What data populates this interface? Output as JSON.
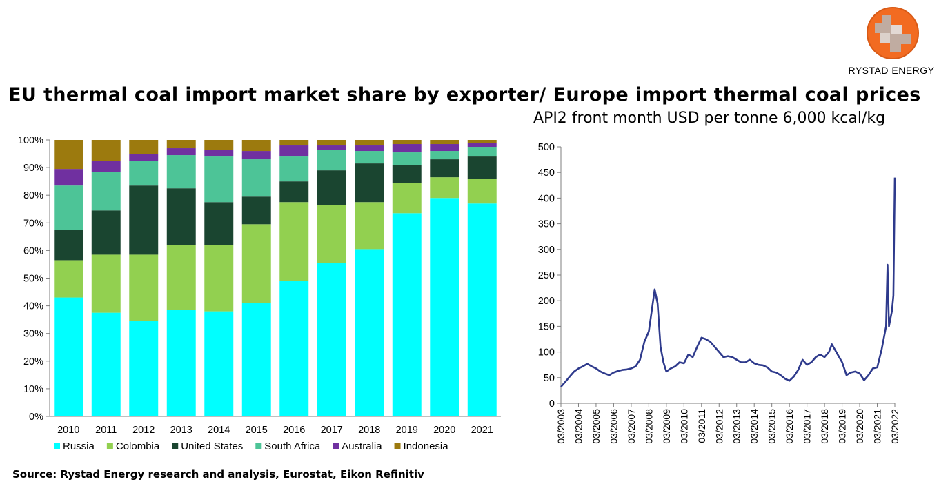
{
  "header": {
    "title": "EU thermal coal import market share by exporter/ Europe import thermal coal prices",
    "subtitle": "API2 front month USD per tonne 6,000 kcal/kg",
    "source": "Source: Rystad Energy research and analysis,  Eurostat, Eikon Refinitiv",
    "logo_text": "RYSTAD ENERGY"
  },
  "colors": {
    "russia": "#00FFFF",
    "colombia": "#92D050",
    "united_states": "#1A4530",
    "south_africa": "#4DC497",
    "australia": "#7030A0",
    "indonesia": "#9C7A0E",
    "price_line": "#2E3A8C",
    "logo_orange": "#F26B21"
  },
  "chart_data": [
    {
      "type": "bar",
      "stacked": true,
      "categories": [
        "2010",
        "2011",
        "2012",
        "2013",
        "2014",
        "2015",
        "2016",
        "2017",
        "2018",
        "2019",
        "2020",
        "2021"
      ],
      "series": [
        {
          "name": "Russia",
          "values": [
            43,
            37.5,
            34.5,
            38.5,
            38,
            41,
            49,
            55.5,
            60.5,
            73.5,
            79,
            77
          ]
        },
        {
          "name": "Colombia",
          "values": [
            13.5,
            21,
            24,
            23.5,
            24,
            28.5,
            28.5,
            21,
            17,
            11,
            7.5,
            9
          ]
        },
        {
          "name": "United States",
          "values": [
            11,
            16,
            25,
            20.5,
            15.5,
            10,
            7.5,
            12.5,
            14,
            6.5,
            6.5,
            8
          ]
        },
        {
          "name": "South Africa",
          "values": [
            16,
            14,
            9,
            12,
            16.5,
            13.5,
            9,
            7.5,
            4.5,
            4.5,
            3,
            3.5
          ]
        },
        {
          "name": "Australia",
          "values": [
            6,
            4,
            2.5,
            2.5,
            2.5,
            3,
            4,
            1.5,
            2,
            3,
            2.5,
            1.5
          ]
        },
        {
          "name": "Indonesia",
          "values": [
            10.5,
            7.5,
            5,
            3,
            3.5,
            4,
            2,
            2,
            2,
            1.5,
            1.5,
            1
          ]
        }
      ],
      "y_ticks": [
        "0%",
        "10%",
        "20%",
        "30%",
        "40%",
        "50%",
        "60%",
        "70%",
        "80%",
        "90%",
        "100%"
      ],
      "ylim": [
        0,
        100
      ],
      "legend": "bottom"
    },
    {
      "type": "line",
      "x_ticks": [
        "03/2003",
        "03/2004",
        "03/2005",
        "03/2006",
        "03/2007",
        "03/2008",
        "03/2009",
        "03/2010",
        "03/2011",
        "03/2012",
        "03/2013",
        "03/2014",
        "03/2015",
        "03/2016",
        "03/2017",
        "03/2018",
        "03/2019",
        "03/2020",
        "03/2021",
        "03/2022"
      ],
      "y_ticks": [
        "0",
        "50",
        "100",
        "150",
        "200",
        "250",
        "300",
        "350",
        "400",
        "450",
        "500"
      ],
      "ylim": [
        0,
        500
      ],
      "xlim": [
        "2003-03",
        "2022-03"
      ],
      "series": [
        {
          "values": [
            [
              "2003-03",
              32
            ],
            [
              "2003-06",
              42
            ],
            [
              "2003-09",
              52
            ],
            [
              "2003-12",
              62
            ],
            [
              "2004-03",
              68
            ],
            [
              "2004-06",
              72
            ],
            [
              "2004-09",
              77
            ],
            [
              "2004-12",
              72
            ],
            [
              "2005-03",
              68
            ],
            [
              "2005-06",
              62
            ],
            [
              "2005-09",
              58
            ],
            [
              "2005-12",
              55
            ],
            [
              "2006-03",
              60
            ],
            [
              "2006-06",
              63
            ],
            [
              "2006-09",
              65
            ],
            [
              "2006-12",
              66
            ],
            [
              "2007-03",
              68
            ],
            [
              "2007-06",
              72
            ],
            [
              "2007-09",
              85
            ],
            [
              "2007-12",
              120
            ],
            [
              "2008-03",
              140
            ],
            [
              "2008-05",
              180
            ],
            [
              "2008-07",
              222
            ],
            [
              "2008-09",
              195
            ],
            [
              "2008-11",
              110
            ],
            [
              "2009-01",
              80
            ],
            [
              "2009-03",
              62
            ],
            [
              "2009-06",
              68
            ],
            [
              "2009-09",
              72
            ],
            [
              "2009-12",
              80
            ],
            [
              "2010-03",
              78
            ],
            [
              "2010-06",
              95
            ],
            [
              "2010-09",
              90
            ],
            [
              "2010-12",
              110
            ],
            [
              "2011-03",
              128
            ],
            [
              "2011-06",
              125
            ],
            [
              "2011-09",
              120
            ],
            [
              "2011-12",
              110
            ],
            [
              "2012-03",
              100
            ],
            [
              "2012-06",
              90
            ],
            [
              "2012-09",
              92
            ],
            [
              "2012-12",
              90
            ],
            [
              "2013-03",
              85
            ],
            [
              "2013-06",
              80
            ],
            [
              "2013-09",
              80
            ],
            [
              "2013-12",
              85
            ],
            [
              "2014-03",
              78
            ],
            [
              "2014-06",
              75
            ],
            [
              "2014-09",
              74
            ],
            [
              "2014-12",
              70
            ],
            [
              "2015-03",
              62
            ],
            [
              "2015-06",
              60
            ],
            [
              "2015-09",
              55
            ],
            [
              "2015-12",
              48
            ],
            [
              "2016-03",
              44
            ],
            [
              "2016-06",
              52
            ],
            [
              "2016-09",
              65
            ],
            [
              "2016-12",
              85
            ],
            [
              "2017-03",
              75
            ],
            [
              "2017-06",
              80
            ],
            [
              "2017-09",
              90
            ],
            [
              "2017-12",
              95
            ],
            [
              "2018-03",
              90
            ],
            [
              "2018-06",
              100
            ],
            [
              "2018-08",
              115
            ],
            [
              "2018-10",
              105
            ],
            [
              "2018-12",
              95
            ],
            [
              "2019-03",
              80
            ],
            [
              "2019-06",
              55
            ],
            [
              "2019-09",
              60
            ],
            [
              "2019-12",
              62
            ],
            [
              "2020-03",
              58
            ],
            [
              "2020-06",
              45
            ],
            [
              "2020-09",
              55
            ],
            [
              "2020-12",
              68
            ],
            [
              "2021-03",
              70
            ],
            [
              "2021-06",
              105
            ],
            [
              "2021-09",
              150
            ],
            [
              "2021-10",
              270
            ],
            [
              "2021-11",
              150
            ],
            [
              "2021-12",
              165
            ],
            [
              "2022-01",
              180
            ],
            [
              "2022-02",
              210
            ],
            [
              "2022-03",
              440
            ]
          ]
        }
      ]
    }
  ]
}
